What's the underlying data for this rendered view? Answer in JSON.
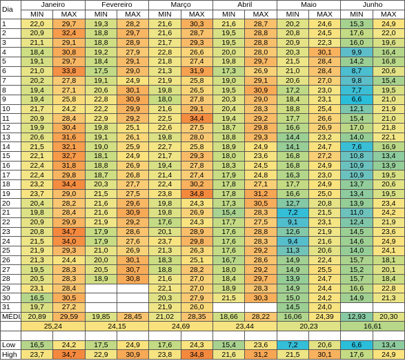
{
  "labels": {
    "day": "Dia",
    "min": "MIN",
    "max": "MAX",
    "mean": "MÉDIA",
    "low": "Low",
    "high": "High"
  },
  "months": [
    "Janeiro",
    "Fevereiro",
    "Março",
    "Abril",
    "Maio",
    "Junho"
  ],
  "rows": [
    {
      "day": "1",
      "values": [
        "22,0",
        "29,7",
        "19,3",
        "28,2",
        "21,6",
        "30,3",
        "21,6",
        "28,7",
        "20,2",
        "24,6",
        "15,3",
        "24,9"
      ]
    },
    {
      "day": "2",
      "values": [
        "20,9",
        "32,4",
        "18,8",
        "29,7",
        "21,6",
        "28,7",
        "19,5",
        "28,8",
        "20,8",
        "24,5",
        "17,6",
        "22,0"
      ]
    },
    {
      "day": "3",
      "values": [
        "21,1",
        "29,1",
        "18,8",
        "28,9",
        "21,7",
        "29,3",
        "19,5",
        "28,8",
        "20,9",
        "22,3",
        "16,0",
        "19,6"
      ]
    },
    {
      "day": "4",
      "values": [
        "18,4",
        "30,8",
        "19,2",
        "27,9",
        "22,8",
        "26,6",
        "20,0",
        "28,0",
        "20,3",
        "30,1",
        "9,9",
        "16,4"
      ]
    },
    {
      "day": "5",
      "values": [
        "19,1",
        "29,7",
        "18,4",
        "29,1",
        "21,8",
        "27,4",
        "19,8",
        "29,7",
        "21,5",
        "28,4",
        "14,2",
        "16,8"
      ]
    },
    {
      "day": "6",
      "values": [
        "21,0",
        "33,8",
        "17,5",
        "29,0",
        "21,3",
        "31,9",
        "17,3",
        "26,9",
        "21,0",
        "28,4",
        "8,7",
        "20,6"
      ]
    },
    {
      "day": "7",
      "values": [
        "20,2",
        "27,8",
        "19,1",
        "24,9",
        "21,9",
        "25,8",
        "19,0",
        "29,1",
        "20,6",
        "27,0",
        "9,8",
        "15,4"
      ]
    },
    {
      "day": "8",
      "values": [
        "19,4",
        "27,1",
        "20,6",
        "30,1",
        "19,8",
        "26,5",
        "19,5",
        "30,9",
        "17,2",
        "23,0",
        "7,7",
        "19,5"
      ]
    },
    {
      "day": "9",
      "values": [
        "19,4",
        "25,8",
        "22,8",
        "30,9",
        "18,0",
        "27,8",
        "20,3",
        "29,0",
        "18,4",
        "23,1",
        "6,6",
        "21,0"
      ]
    },
    {
      "day": "10",
      "values": [
        "21,7",
        "24,2",
        "22,2",
        "29,9",
        "21,6",
        "29,1",
        "20,4",
        "28,3",
        "18,8",
        "25,4",
        "12,1",
        "21,9"
      ]
    },
    {
      "day": "11",
      "values": [
        "20,9",
        "28,4",
        "22,9",
        "29,2",
        "22,5",
        "34,4",
        "19,4",
        "29,2",
        "17,7",
        "26,6",
        "15,4",
        "21,0"
      ]
    },
    {
      "day": "12",
      "values": [
        "19,9",
        "30,4",
        "19,8",
        "25,1",
        "22,6",
        "27,5",
        "18,7",
        "29,8",
        "16,6",
        "26,9",
        "17,0",
        "21,8"
      ]
    },
    {
      "day": "13",
      "values": [
        "20,6",
        "31,6",
        "19,1",
        "26,1",
        "19,8",
        "28,0",
        "18,8",
        "29,3",
        "14,4",
        "23,2",
        "14,0",
        "22,1"
      ]
    },
    {
      "day": "14",
      "values": [
        "21,5",
        "32,1",
        "19,0",
        "25,9",
        "22,7",
        "25,8",
        "18,9",
        "24,9",
        "14,1",
        "24,7",
        "7,6",
        "16,9"
      ]
    },
    {
      "day": "15",
      "values": [
        "22,1",
        "32,7",
        "18,1",
        "24,9",
        "21,7",
        "29,3",
        "18,0",
        "23,6",
        "16,8",
        "27,2",
        "10,8",
        "13,4"
      ]
    },
    {
      "day": "16",
      "values": [
        "22,4",
        "31,8",
        "18,8",
        "26,9",
        "19,4",
        "27,8",
        "18,3",
        "24,5",
        "16,8",
        "24,9",
        "10,9",
        "13,9"
      ]
    },
    {
      "day": "17",
      "values": [
        "22,4",
        "29,8",
        "18,7",
        "26,8",
        "21,4",
        "27,4",
        "17,9",
        "24,8",
        "16,3",
        "23,0",
        "10,9",
        "19,5"
      ]
    },
    {
      "day": "18",
      "values": [
        "23,2",
        "34,4",
        "20,3",
        "27,7",
        "22,4",
        "30,2",
        "17,8",
        "27,1",
        "17,7",
        "24,9",
        "13,7",
        "20,6"
      ]
    },
    {
      "day": "19",
      "values": [
        "23,7",
        "29,0",
        "21,5",
        "27,5",
        "23,8",
        "34,8",
        "17,8",
        "31,2",
        "16,6",
        "25,0",
        "13,4",
        "19,5"
      ]
    },
    {
      "day": "20",
      "values": [
        "20,4",
        "28,2",
        "21,6",
        "29,6",
        "19,8",
        "24,3",
        "17,3",
        "30,5",
        "12,7",
        "20,8",
        "13,9",
        "23,4"
      ]
    },
    {
      "day": "21",
      "values": [
        "19,8",
        "28,4",
        "21,6",
        "30,9",
        "19,8",
        "26,9",
        "15,4",
        "28,3",
        "7,2",
        "21,5",
        "11,0",
        "24,2"
      ]
    },
    {
      "day": "22",
      "values": [
        "20,9",
        "29,9",
        "21,9",
        "29,2",
        "17,6",
        "24,3",
        "17,7",
        "27,5",
        "9,1",
        "23,1",
        "12,4",
        "21,9"
      ]
    },
    {
      "day": "23",
      "values": [
        "20,8",
        "34,7",
        "17,9",
        "28,6",
        "20,1",
        "28,9",
        "17,6",
        "28,8",
        "12,6",
        "21,9",
        "14,5",
        "23,6"
      ]
    },
    {
      "day": "24",
      "values": [
        "21,5",
        "34,0",
        "17,9",
        "27,6",
        "23,7",
        "29,8",
        "17,6",
        "28,3",
        "9,4",
        "21,6",
        "14,6",
        "24,9"
      ]
    },
    {
      "day": "25",
      "values": [
        "21,9",
        "29,3",
        "21,0",
        "26,9",
        "21,3",
        "26,3",
        "17,6",
        "29,2",
        "11,3",
        "20,6",
        "14,0",
        "24,1"
      ]
    },
    {
      "day": "26",
      "values": [
        "21,3",
        "24,4",
        "20,0",
        "30,1",
        "18,3",
        "25,1",
        "16,7",
        "28,6",
        "14,9",
        "22,4",
        "15,7",
        "18,1"
      ]
    },
    {
      "day": "27",
      "values": [
        "19,5",
        "28,3",
        "20,5",
        "30,7",
        "18,8",
        "28,2",
        "18,0",
        "29,2",
        "14,9",
        "25,5",
        "15,2",
        "20,1"
      ]
    },
    {
      "day": "28",
      "values": [
        "20,5",
        "28,3",
        "18,9",
        "30,8",
        "21,6",
        "27,0",
        "18,4",
        "29,7",
        "13,9",
        "24,7",
        "15,7",
        "18,4"
      ]
    },
    {
      "day": "29",
      "values": [
        "23,1",
        "28,4",
        null,
        null,
        "22,1",
        "27,0",
        "18,9",
        "28,3",
        "14,9",
        "24,4",
        "16,6",
        "22,8"
      ]
    },
    {
      "day": "30",
      "values": [
        "16,5",
        "30,5",
        null,
        null,
        "20,3",
        "27,9",
        "21,5",
        "30,3",
        "15,0",
        "24,2",
        "14,9",
        "21,3"
      ]
    },
    {
      "day": "31",
      "values": [
        "19,7",
        "27,2",
        null,
        null,
        "21,9",
        "26,0",
        null,
        null,
        "14,5",
        "24,0",
        null,
        null
      ]
    }
  ],
  "mean": [
    "20,89",
    "29,59",
    "19,85",
    "28,45",
    "21,02",
    "28,35",
    "18,66",
    "28,22",
    "16,06",
    "24,39",
    "12,93",
    "20,30"
  ],
  "mean_overall": [
    "25,24",
    "24,15",
    "24,69",
    "23,44",
    "20,23",
    "16,61"
  ],
  "low": [
    "16,5",
    "24,2",
    "17,5",
    "24,9",
    "17,6",
    "24,3",
    "15,4",
    "23,6",
    "7,2",
    "20,6",
    "6,6",
    "13,4"
  ],
  "high": [
    "23,7",
    "34,7",
    "22,9",
    "30,9",
    "23,8",
    "34,8",
    "21,6",
    "31,2",
    "21,5",
    "30,1",
    "17,6",
    "24,9"
  ]
}
